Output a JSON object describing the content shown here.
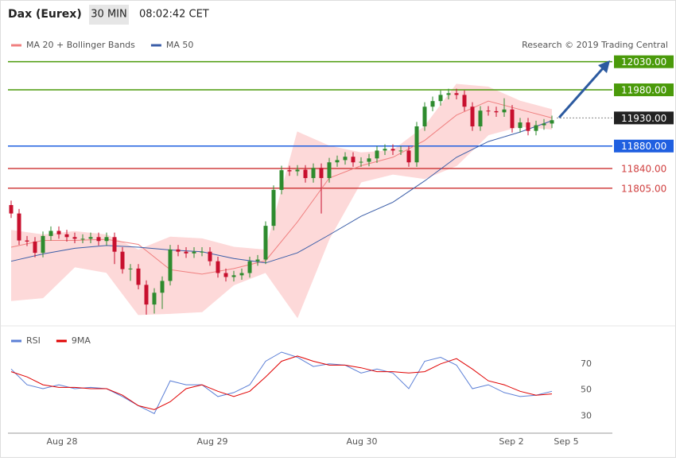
{
  "header": {
    "title": "Dax (Eurex)",
    "interval": "30 MIN",
    "time": "08:02:42 CET",
    "credit": "Research © 2019 Trading Central"
  },
  "chart_data": [
    {
      "type": "candlestick",
      "xlim": [
        -0.4,
        75.6
      ],
      "ylim": [
        11560,
        12055
      ],
      "xticks": [
        {
          "value": 6.4,
          "label": "Aug 28"
        },
        {
          "value": 25.3,
          "label": "Aug 29"
        },
        {
          "value": 44.1,
          "label": "Aug 30"
        },
        {
          "value": 62.9,
          "label": "Sep 2"
        },
        {
          "value": 69.8,
          "label": "Sep 5"
        }
      ],
      "up_color": "#2e8b2e",
      "down_color": "#c8102e",
      "band_color": "#fdd9d9",
      "x": [
        0,
        1,
        2,
        3,
        4,
        5,
        6,
        7,
        8,
        9,
        10,
        11,
        12,
        13,
        14,
        15,
        16,
        17,
        18,
        19,
        20,
        21,
        22,
        23,
        24,
        25,
        26,
        27,
        28,
        29,
        30,
        31,
        32,
        33,
        34,
        35,
        36,
        37,
        38,
        39,
        40,
        41,
        42,
        43,
        44,
        45,
        46,
        47,
        48,
        49,
        50,
        51,
        52,
        53,
        54,
        55,
        56,
        57,
        58,
        59,
        60,
        61,
        62,
        63,
        64,
        65,
        66,
        67,
        68
      ],
      "open": [
        11775,
        11760,
        11712,
        11710,
        11690,
        11720,
        11729,
        11723,
        11718,
        11715,
        11715,
        11718,
        11711,
        11718,
        11692,
        11661,
        11662,
        11633,
        11598,
        11619,
        11640,
        11696,
        11692,
        11689,
        11692,
        11692,
        11675,
        11654,
        11647,
        11650,
        11654,
        11675,
        11678,
        11738,
        11802,
        11837,
        11835,
        11838,
        11823,
        11841,
        11823,
        11851,
        11855,
        11861,
        11851,
        11852,
        11858,
        11872,
        11875,
        11872,
        11872,
        11851,
        11915,
        11950,
        11960,
        11971,
        11974,
        11971,
        11950,
        11915,
        11943,
        11942,
        11940,
        11945,
        11912,
        11922,
        11907,
        11917,
        11920
      ],
      "high": [
        11783,
        11768,
        11720,
        11718,
        11728,
        11737,
        11737,
        11731,
        11726,
        11723,
        11726,
        11726,
        11726,
        11726,
        11700,
        11670,
        11670,
        11641,
        11627,
        11648,
        11704,
        11704,
        11700,
        11700,
        11700,
        11700,
        11683,
        11662,
        11658,
        11662,
        11683,
        11686,
        11746,
        11810,
        11845,
        11845,
        11846,
        11846,
        11849,
        11849,
        11859,
        11863,
        11869,
        11869,
        11860,
        11866,
        11880,
        11883,
        11883,
        11880,
        11880,
        11923,
        11958,
        11968,
        11979,
        11982,
        11982,
        11979,
        11958,
        11951,
        11951,
        11950,
        11965,
        11953,
        11930,
        11930,
        11925,
        11928,
        11934
      ],
      "low": [
        11752,
        11704,
        11702,
        11682,
        11682,
        11712,
        11715,
        11710,
        11707,
        11707,
        11707,
        11703,
        11703,
        11670,
        11653,
        11640,
        11625,
        11580,
        11582,
        11590,
        11632,
        11684,
        11681,
        11681,
        11684,
        11667,
        11646,
        11639,
        11639,
        11642,
        11646,
        11667,
        11670,
        11730,
        11794,
        11827,
        11827,
        11815,
        11815,
        11760,
        11815,
        11843,
        11847,
        11843,
        11843,
        11844,
        11850,
        11864,
        11864,
        11864,
        11843,
        11843,
        11907,
        11942,
        11952,
        11963,
        11963,
        11942,
        11907,
        11907,
        11934,
        11932,
        11932,
        11904,
        11904,
        11899,
        11899,
        11909,
        11912
      ],
      "close": [
        11760,
        11712,
        11710,
        11690,
        11720,
        11729,
        11723,
        11718,
        11715,
        11715,
        11718,
        11711,
        11718,
        11692,
        11661,
        11662,
        11633,
        11598,
        11619,
        11640,
        11696,
        11692,
        11689,
        11692,
        11692,
        11675,
        11654,
        11647,
        11650,
        11654,
        11675,
        11678,
        11738,
        11802,
        11837,
        11835,
        11838,
        11823,
        11841,
        11823,
        11851,
        11855,
        11861,
        11851,
        11852,
        11858,
        11872,
        11875,
        11872,
        11872,
        11851,
        11915,
        11950,
        11960,
        11971,
        11974,
        11971,
        11950,
        11915,
        11943,
        11942,
        11940,
        11945,
        11912,
        11922,
        11907,
        11917,
        11920,
        11926
      ],
      "series": [
        {
          "name": "MA 20 + Bollinger Bands",
          "color": "#f08080",
          "x": [
            0,
            4,
            8,
            12,
            16,
            20,
            24,
            28,
            32,
            36,
            40,
            44,
            48,
            52,
            56,
            60,
            64,
            68
          ],
          "values": [
            11700,
            11712,
            11712,
            11714,
            11705,
            11660,
            11652,
            11662,
            11676,
            11745,
            11823,
            11845,
            11860,
            11890,
            11935,
            11960,
            11945,
            11930
          ],
          "upper": [
            11730,
            11722,
            11728,
            11722,
            11695,
            11718,
            11715,
            11700,
            11695,
            11905,
            11880,
            11868,
            11872,
            11915,
            11990,
            11985,
            11960,
            11945
          ],
          "lower": [
            11605,
            11610,
            11665,
            11655,
            11580,
            11582,
            11585,
            11633,
            11655,
            11575,
            11715,
            11816,
            11830,
            11822,
            11845,
            11900,
            11915,
            11910
          ]
        },
        {
          "name": "MA 50",
          "color": "#3b5ea8",
          "x": [
            0,
            4,
            8,
            12,
            16,
            20,
            24,
            28,
            32,
            36,
            40,
            44,
            48,
            52,
            56,
            60,
            64,
            68
          ],
          "values": [
            11675,
            11688,
            11698,
            11703,
            11700,
            11695,
            11692,
            11680,
            11672,
            11690,
            11722,
            11755,
            11780,
            11818,
            11860,
            11888,
            11905,
            11925
          ]
        }
      ],
      "levels": [
        {
          "value": 12030,
          "label": "12030.00",
          "color": "#4a9a0a",
          "line": "solid",
          "label_box": true
        },
        {
          "value": 11980,
          "label": "11980.00",
          "color": "#4a9a0a",
          "line": "solid",
          "label_box": true
        },
        {
          "value": 11930,
          "label": "11930.00",
          "color": "#222222",
          "line": "dotted",
          "label_box": true
        },
        {
          "value": 11880,
          "label": "11880.00",
          "color": "#1f5fe0",
          "line": "solid",
          "label_box": true
        },
        {
          "value": 11840,
          "label": "11840.00",
          "color": "#d04040",
          "line": "solid",
          "label_box": false
        },
        {
          "value": 11805,
          "label": "11805.00",
          "color": "#d04040",
          "line": "solid",
          "label_box": false
        }
      ]
    },
    {
      "type": "line",
      "xlim": [
        -0.4,
        75.6
      ],
      "ylim": [
        20,
        96
      ],
      "yticks": [
        30,
        50,
        70
      ],
      "x": [
        0,
        2,
        4,
        6,
        8,
        10,
        12,
        14,
        16,
        18,
        20,
        22,
        24,
        26,
        28,
        30,
        32,
        34,
        36,
        38,
        40,
        42,
        44,
        46,
        48,
        50,
        52,
        54,
        56,
        58,
        60,
        62,
        64,
        66,
        68
      ],
      "series": [
        {
          "name": "RSI",
          "color": "#5b7fd6",
          "values": [
            66,
            54,
            51,
            54,
            51,
            52,
            51,
            45,
            38,
            32,
            57,
            54,
            54,
            45,
            48,
            54,
            72,
            79,
            75,
            68,
            70,
            69,
            63,
            66,
            63,
            51,
            72,
            75,
            69,
            51,
            54,
            48,
            45,
            46,
            49
          ]
        },
        {
          "name": "9MA",
          "color": "#e00000",
          "values": [
            64,
            60,
            54,
            52,
            52,
            51,
            51,
            46,
            38,
            35,
            41,
            51,
            54,
            49,
            45,
            49,
            60,
            72,
            76,
            72,
            69,
            69,
            67,
            64,
            64,
            63,
            64,
            70,
            74,
            66,
            57,
            54,
            49,
            46,
            47
          ]
        }
      ]
    }
  ]
}
